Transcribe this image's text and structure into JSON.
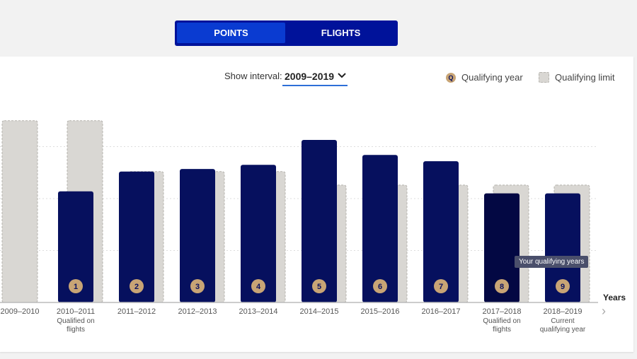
{
  "tabs": {
    "points": "POINTS",
    "flights": "FLIGHTS"
  },
  "interval": {
    "label": "Show interval:",
    "value": "2009–2019"
  },
  "legend": {
    "qualifying_year": "Qualifying year",
    "qualifying_limit": "Qualifying limit",
    "q_badge": "Q"
  },
  "tooltip": "Your qualifying years",
  "colors": {
    "bar": "#06105e",
    "bar_selected": "#030843",
    "limit": "#d9d7d3",
    "badge": "#c8a475"
  },
  "chart_data": {
    "type": "bar",
    "xlabel": "Years",
    "ylim": [
      0,
      4
    ],
    "grid": true,
    "categories": [
      "2009–2010",
      "2010–2011",
      "2011–2012",
      "2012–2013",
      "2013–2014",
      "2014–2015",
      "2015–2016",
      "2016–2017",
      "2017–2018",
      "2018–2019"
    ],
    "sublabels": [
      "",
      "Qualified on flights",
      "",
      "",
      "",
      "",
      "",
      "",
      "Qualified on flights",
      "Current qualifying year"
    ],
    "badges": [
      "",
      "1",
      "2",
      "3",
      "4",
      "5",
      "6",
      "7",
      "8",
      "9"
    ],
    "series": [
      {
        "name": "Qualifying limit",
        "values": [
          3.5,
          3.5,
          2.52,
          2.52,
          2.52,
          2.26,
          2.26,
          2.26,
          2.26,
          2.26
        ]
      },
      {
        "name": "Qualifying year",
        "values": [
          null,
          2.14,
          2.52,
          2.57,
          2.65,
          3.13,
          2.84,
          2.72,
          2.1,
          2.1
        ]
      }
    ]
  }
}
